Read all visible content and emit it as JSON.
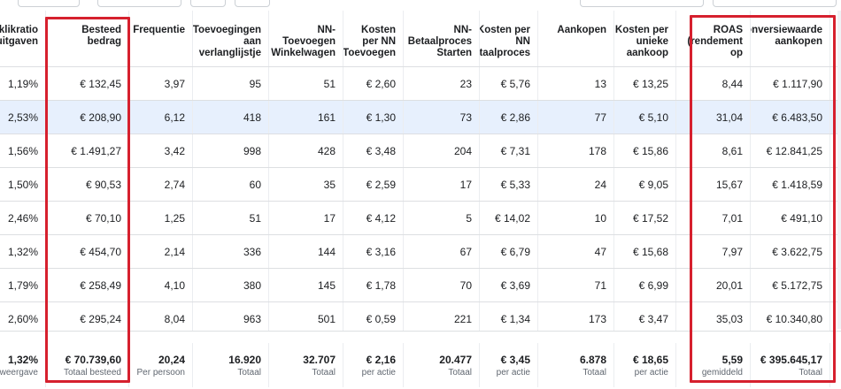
{
  "columns": [
    {
      "key": "ctr",
      "label": "Doorklikratio uitgaven"
    },
    {
      "key": "spend",
      "label": "Besteed bedrag"
    },
    {
      "key": "freq",
      "label": "Frequentie"
    },
    {
      "key": "wishlist",
      "label": "Toevoegingen aan verlanglijstje"
    },
    {
      "key": "cart",
      "label": "NN-Toevoegen Winkelwagen"
    },
    {
      "key": "cost_add",
      "label": "Kosten per NN Toevoegen"
    },
    {
      "key": "checkout",
      "label": "NN-Betaalproces Starten"
    },
    {
      "key": "cost_checkout",
      "label": "Kosten per NN Betaalproces"
    },
    {
      "key": "purchases",
      "label": "Aankopen"
    },
    {
      "key": "cost_unique",
      "label": "Kosten per unieke aankoop"
    },
    {
      "key": "roas",
      "label": "ROAS (rendement op"
    },
    {
      "key": "conv_value",
      "label": "Conversiewaarde aankopen"
    }
  ],
  "rows": [
    [
      "1,19%",
      "€ 132,45",
      "3,97",
      "95",
      "51",
      "€ 2,60",
      "23",
      "€ 5,76",
      "13",
      "€ 13,25",
      "8,44",
      "€ 1.117,90"
    ],
    [
      "2,53%",
      "€ 208,90",
      "6,12",
      "418",
      "161",
      "€ 1,30",
      "73",
      "€ 2,86",
      "77",
      "€ 5,10",
      "31,04",
      "€ 6.483,50"
    ],
    [
      "1,56%",
      "€ 1.491,27",
      "3,42",
      "998",
      "428",
      "€ 3,48",
      "204",
      "€ 7,31",
      "178",
      "€ 15,86",
      "8,61",
      "€ 12.841,25"
    ],
    [
      "1,50%",
      "€ 90,53",
      "2,74",
      "60",
      "35",
      "€ 2,59",
      "17",
      "€ 5,33",
      "24",
      "€ 9,05",
      "15,67",
      "€ 1.418,59"
    ],
    [
      "2,46%",
      "€ 70,10",
      "1,25",
      "51",
      "17",
      "€ 4,12",
      "5",
      "€ 14,02",
      "10",
      "€ 17,52",
      "7,01",
      "€ 491,10"
    ],
    [
      "1,32%",
      "€ 454,70",
      "2,14",
      "336",
      "144",
      "€ 3,16",
      "67",
      "€ 6,79",
      "47",
      "€ 15,68",
      "7,97",
      "€ 3.622,75"
    ],
    [
      "1,79%",
      "€ 258,49",
      "4,10",
      "380",
      "145",
      "€ 1,78",
      "70",
      "€ 3,69",
      "71",
      "€ 6,99",
      "20,01",
      "€ 5.172,75"
    ],
    [
      "2,60%",
      "€ 295,24",
      "8,04",
      "963",
      "501",
      "€ 0,59",
      "221",
      "€ 1,34",
      "173",
      "€ 3,47",
      "35,03",
      "€ 10.340,80"
    ]
  ],
  "totals": [
    {
      "value": "1,32%",
      "sub": "Per weergave"
    },
    {
      "value": "€ 70.739,60",
      "sub": "Totaal besteed"
    },
    {
      "value": "20,24",
      "sub": "Per persoon"
    },
    {
      "value": "16.920",
      "sub": "Totaal"
    },
    {
      "value": "32.707",
      "sub": "Totaal"
    },
    {
      "value": "€ 2,16",
      "sub": "per actie"
    },
    {
      "value": "20.477",
      "sub": "Totaal"
    },
    {
      "value": "€ 3,45",
      "sub": "per actie"
    },
    {
      "value": "6.878",
      "sub": "Totaal"
    },
    {
      "value": "€ 18,65",
      "sub": "per actie"
    },
    {
      "value": "5,59",
      "sub": "gemiddeld"
    },
    {
      "value": "€ 395.645,17",
      "sub": "Totaal"
    }
  ],
  "selected_row": 1,
  "highlight_color": "#d6202e"
}
